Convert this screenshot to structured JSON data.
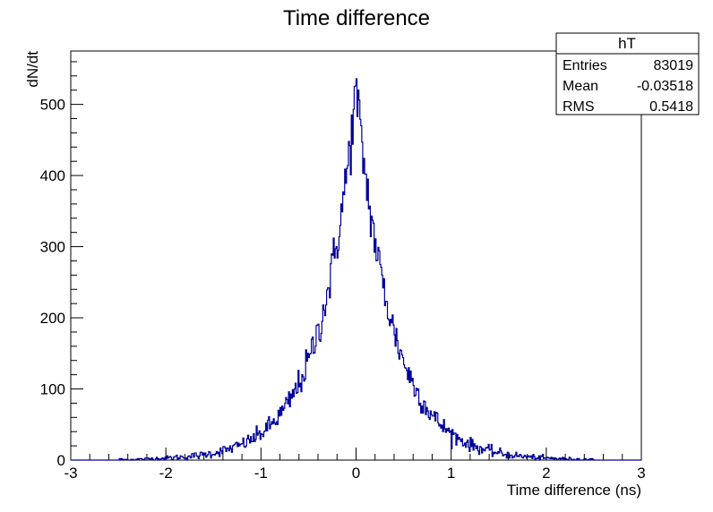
{
  "chart_data": {
    "type": "histogram",
    "title": "Time difference",
    "xlabel": "Time difference (ns)",
    "ylabel": "dN/dt",
    "xlim": [
      -3,
      3
    ],
    "ylim": [
      0,
      575
    ],
    "x_ticks": [
      -3,
      -2,
      -1,
      0,
      1,
      2,
      3
    ],
    "y_ticks": [
      0,
      100,
      200,
      300,
      400,
      500
    ],
    "line_color": "#000099",
    "bin_width": 0.01,
    "profile": {
      "peak_x": 0.0,
      "peak_y": 520,
      "shape": "laplace",
      "scale_ns": 0.38,
      "support": [
        -2.5,
        2.5
      ]
    },
    "stats_box": {
      "title": "hT",
      "entries_label": "Entries",
      "entries_value": "83019",
      "mean_label": "Mean",
      "mean_value": "-0.03518",
      "rms_label": "RMS",
      "rms_value": "0.5418"
    }
  }
}
